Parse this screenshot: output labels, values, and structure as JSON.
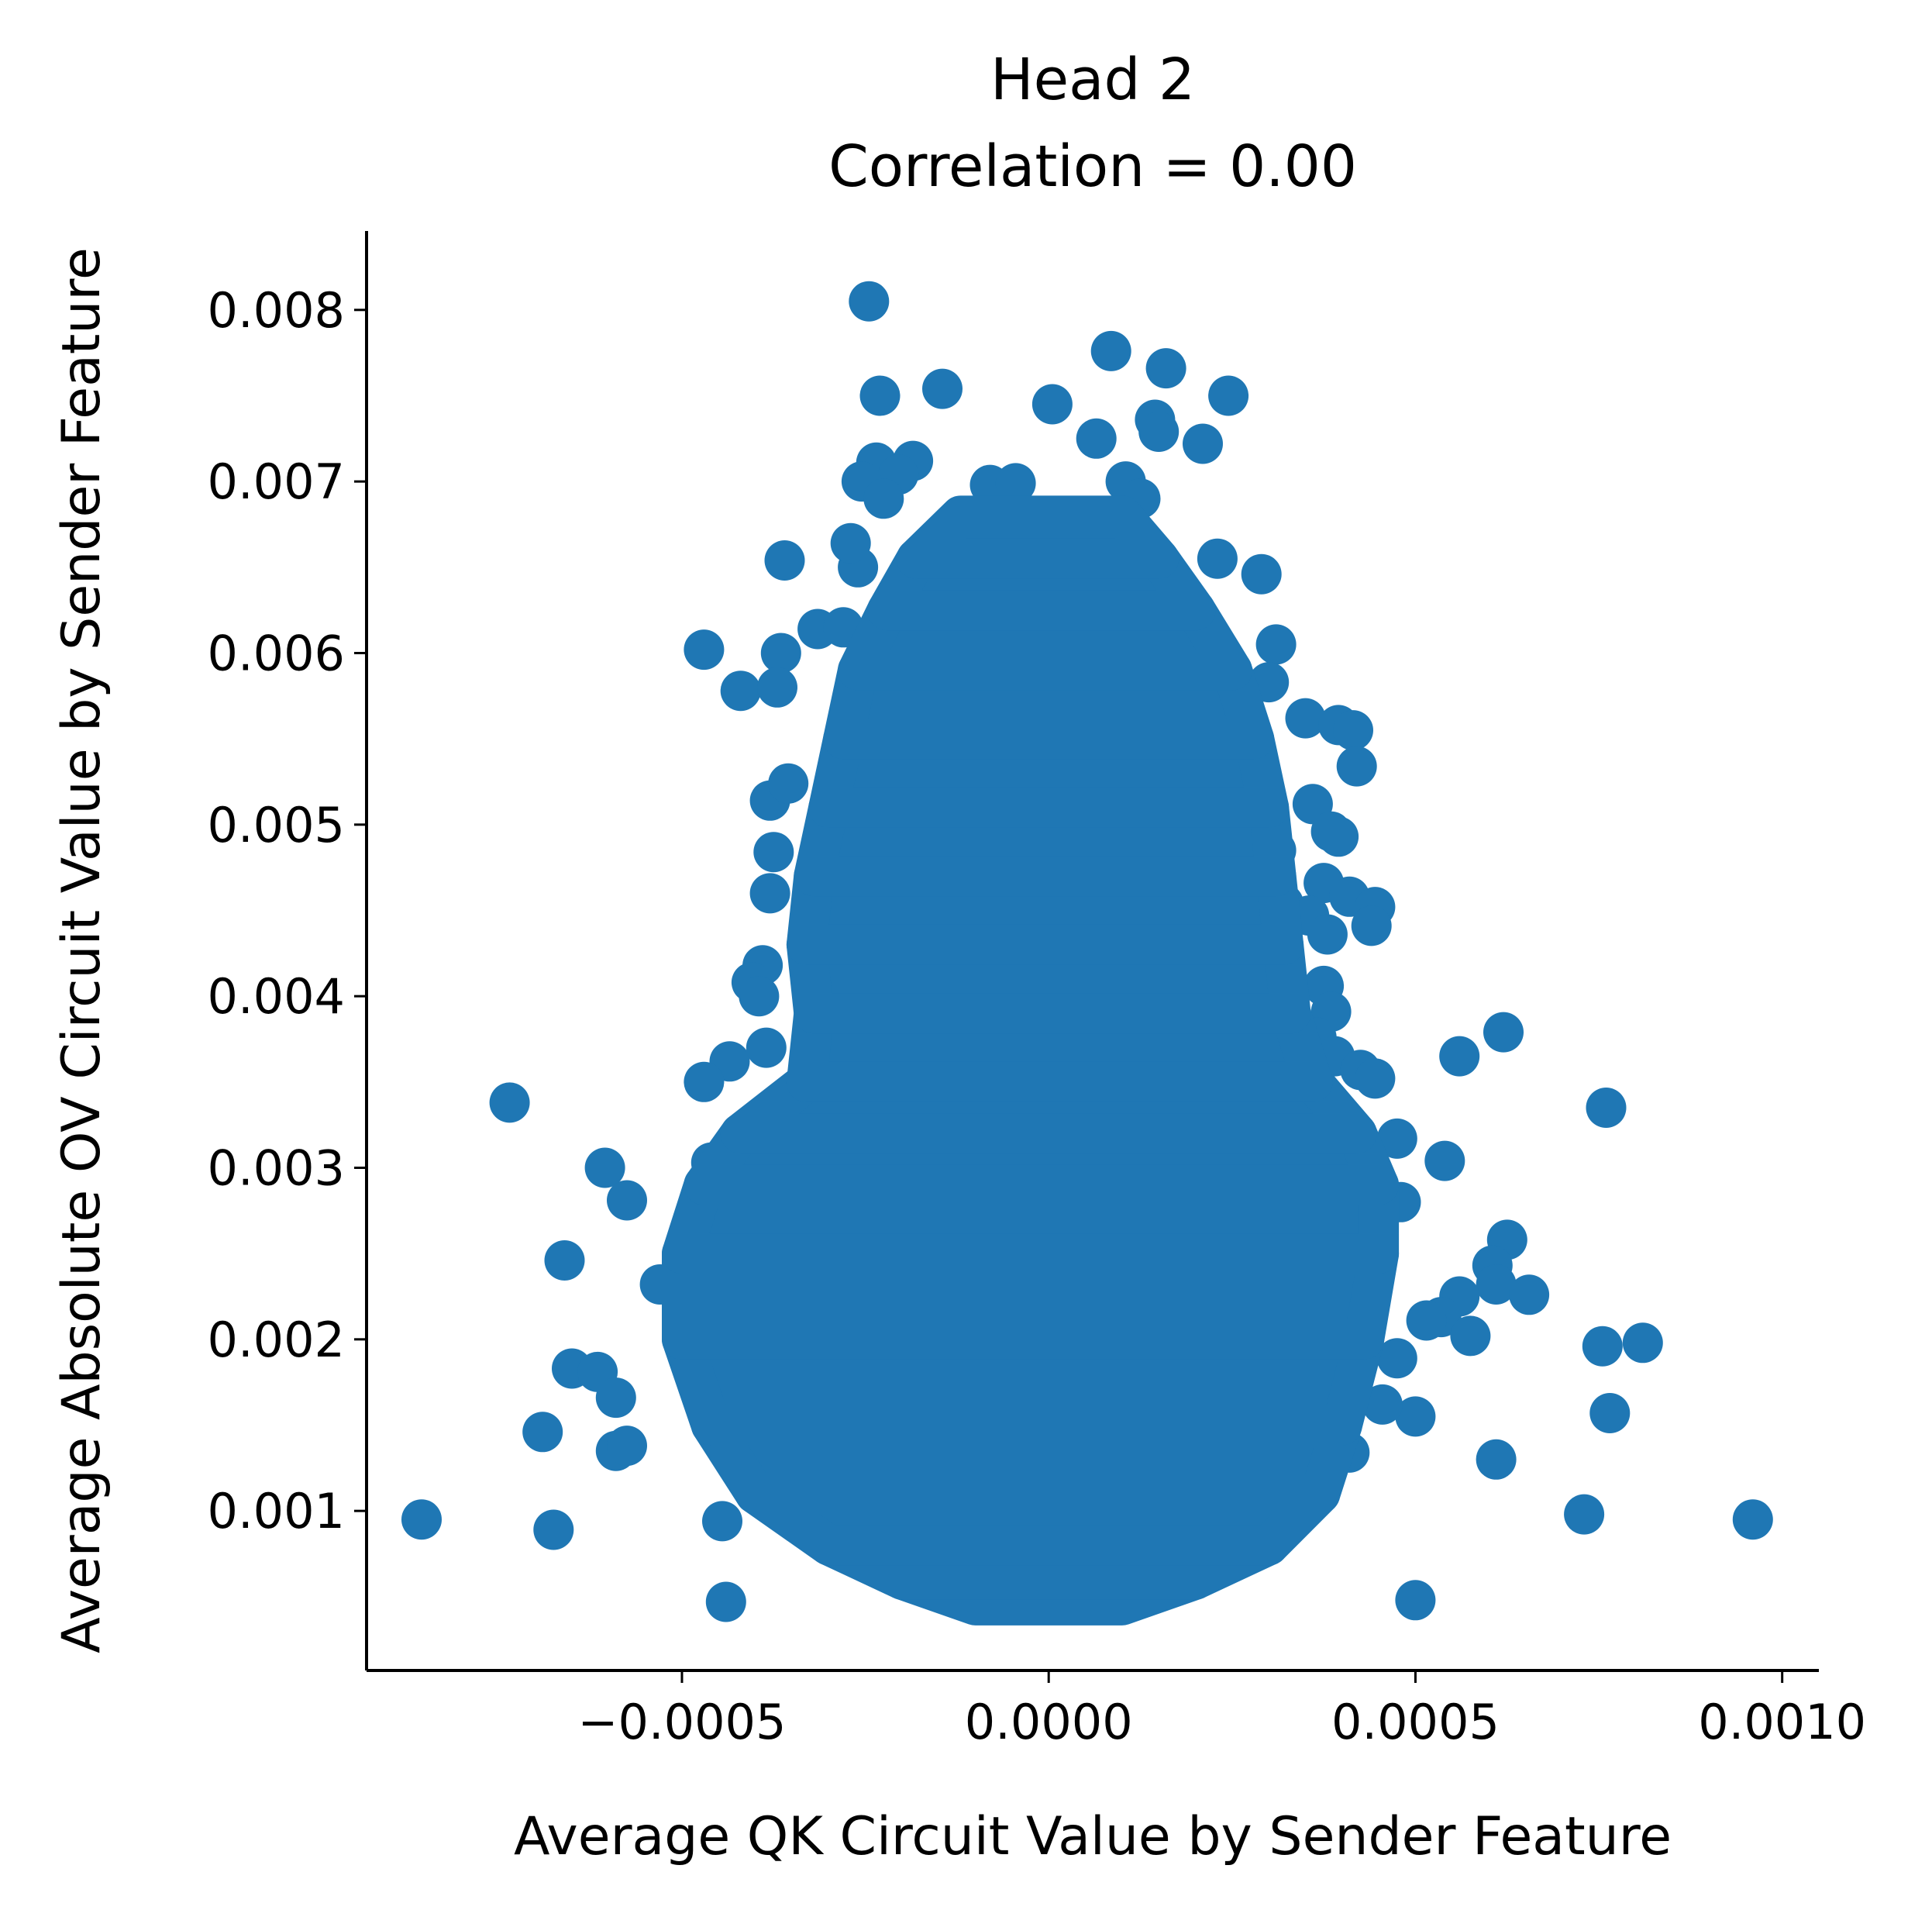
{
  "chart_data": {
    "type": "scatter",
    "title": "Head 2",
    "subtitle": "Correlation = 0.00",
    "xlabel": "Average QK Circuit Value by Sender Feature",
    "ylabel": "Average Absolute OV Circuit Value by Sender Feature",
    "xlim": [
      -0.00093,
      0.00105
    ],
    "ylim": [
      7e-05,
      0.00846
    ],
    "x_ticks": [
      {
        "value": -0.0005,
        "label": "−0.0005"
      },
      {
        "value": 0.0,
        "label": "0.0000"
      },
      {
        "value": 0.0005,
        "label": "0.0005"
      },
      {
        "value": 0.001,
        "label": "0.0010"
      }
    ],
    "y_ticks": [
      {
        "value": 0.001,
        "label": "0.001"
      },
      {
        "value": 0.002,
        "label": "0.002"
      },
      {
        "value": 0.003,
        "label": "0.003"
      },
      {
        "value": 0.004,
        "label": "0.004"
      },
      {
        "value": 0.005,
        "label": "0.005"
      },
      {
        "value": 0.006,
        "label": "0.006"
      },
      {
        "value": 0.007,
        "label": "0.007"
      },
      {
        "value": 0.008,
        "label": "0.008"
      }
    ],
    "grid": false,
    "marker_color": "#1f77b4",
    "series": [
      {
        "points": [
          [
            -0.000245,
            0.00805
          ],
          [
            8.5e-05,
            0.00776
          ],
          [
            0.00016,
            0.00766
          ],
          [
            -0.000145,
            0.00754
          ],
          [
            -0.00023,
            0.0075
          ],
          [
            0.000245,
            0.0075
          ],
          [
            5e-06,
            0.00745
          ],
          [
            0.000145,
            0.00736
          ],
          [
            0.00015,
            0.00729
          ],
          [
            6.5e-05,
            0.00725
          ],
          [
            0.00021,
            0.00722
          ],
          [
            -0.000185,
            0.00712
          ],
          [
            -0.000235,
            0.00711
          ],
          [
            -0.000205,
            0.00704
          ],
          [
            -0.000255,
            0.007
          ],
          [
            0.000105,
            0.007
          ],
          [
            -8e-05,
            0.00698
          ],
          [
            -4.5e-05,
            0.00699
          ],
          [
            0.000125,
            0.0069
          ],
          [
            -0.000225,
            0.0069
          ],
          [
            -0.00036,
            0.00654
          ],
          [
            0.00029,
            0.00646
          ],
          [
            0.00023,
            0.00655
          ],
          [
            -0.00026,
            0.0065
          ],
          [
            -0.00027,
            0.00664
          ],
          [
            -0.00047,
            0.00602
          ],
          [
            -0.00042,
            0.00578
          ],
          [
            -0.000365,
            0.006
          ],
          [
            -0.00037,
            0.0058
          ],
          [
            0.00031,
            0.00605
          ],
          [
            0.0003,
            0.00583
          ],
          [
            -0.000315,
            0.00614
          ],
          [
            -0.00028,
            0.00615
          ],
          [
            0.00035,
            0.00562
          ],
          [
            0.000395,
            0.00558
          ],
          [
            0.000415,
            0.00555
          ],
          [
            0.00042,
            0.00534
          ],
          [
            -0.00038,
            0.00514
          ],
          [
            -0.000355,
            0.00524
          ],
          [
            0.00036,
            0.00512
          ],
          [
            0.000385,
            0.00496
          ],
          [
            0.000395,
            0.00493
          ],
          [
            0.00031,
            0.00485
          ],
          [
            -0.000375,
            0.00484
          ],
          [
            -0.00038,
            0.0046
          ],
          [
            0.000375,
            0.00466
          ],
          [
            0.00041,
            0.00458
          ],
          [
            0.000445,
            0.00452
          ],
          [
            0.00044,
            0.00441
          ],
          [
            0.00032,
            0.00454
          ],
          [
            0.000355,
            0.00447
          ],
          [
            0.00038,
            0.00436
          ],
          [
            -0.00039,
            0.00418
          ],
          [
            -0.000405,
            0.00408
          ],
          [
            -0.000395,
            0.004
          ],
          [
            0.000375,
            0.00406
          ],
          [
            0.000385,
            0.00391
          ],
          [
            0.000365,
            0.00376
          ],
          [
            -0.000385,
            0.0037
          ],
          [
            0.00039,
            0.00365
          ],
          [
            0.000425,
            0.00357
          ],
          [
            0.000445,
            0.00352
          ],
          [
            -0.000435,
            0.00362
          ],
          [
            -0.00047,
            0.0035
          ],
          [
            -0.000735,
            0.00338
          ],
          [
            0.00056,
            0.00365
          ],
          [
            0.00062,
            0.00379
          ],
          [
            0.00076,
            0.00335
          ],
          [
            -0.00046,
            0.00303
          ],
          [
            -0.000605,
            0.003
          ],
          [
            -0.000575,
            0.00281
          ],
          [
            0.00054,
            0.00304
          ],
          [
            0.000475,
            0.00317
          ],
          [
            0.00048,
            0.0028
          ],
          [
            0.000625,
            0.00258
          ],
          [
            0.000605,
            0.00243
          ],
          [
            0.00061,
            0.00232
          ],
          [
            0.000655,
            0.00226
          ],
          [
            0.00056,
            0.00225
          ],
          [
            0.000535,
            0.00213
          ],
          [
            0.000515,
            0.00211
          ],
          [
            0.000575,
            0.00202
          ],
          [
            -0.00053,
            0.00232
          ],
          [
            -0.000495,
            0.00207
          ],
          [
            -0.00066,
            0.00246
          ],
          [
            -0.00065,
            0.00183
          ],
          [
            -0.000615,
            0.00181
          ],
          [
            -0.00059,
            0.00166
          ],
          [
            -0.00069,
            0.00146
          ],
          [
            -0.00059,
            0.00135
          ],
          [
            -0.000575,
            0.00138
          ],
          [
            0.000755,
            0.00196
          ],
          [
            0.00081,
            0.00198
          ],
          [
            0.000765,
            0.00157
          ],
          [
            0.0005,
            0.00155
          ],
          [
            0.00061,
            0.0013
          ],
          [
            0.00073,
            0.00098
          ],
          [
            0.00096,
            0.00095
          ],
          [
            -0.000855,
            0.00095
          ],
          [
            -0.000675,
            0.00089
          ],
          [
            -0.000445,
            0.00094
          ],
          [
            -0.00044,
            0.00047
          ],
          [
            0.0005,
            0.00048
          ],
          [
            0.00041,
            0.00134
          ],
          [
            0.000355,
            0.00105
          ],
          [
            0.000475,
            0.00189
          ],
          [
            0.000455,
            0.00162
          ]
        ]
      }
    ]
  }
}
